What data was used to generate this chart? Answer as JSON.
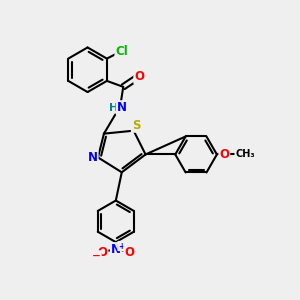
{
  "bg_color": "#efefef",
  "bond_color": "#000000",
  "bond_width": 1.5,
  "atom_colors": {
    "Cl": "#00bb00",
    "O": "#ff0000",
    "N": "#0000ff",
    "S": "#bbaa00",
    "H": "#008888",
    "C": "#000000"
  },
  "font_size": 8.5,
  "fig_width": 3.0,
  "fig_height": 3.0,
  "dpi": 100
}
